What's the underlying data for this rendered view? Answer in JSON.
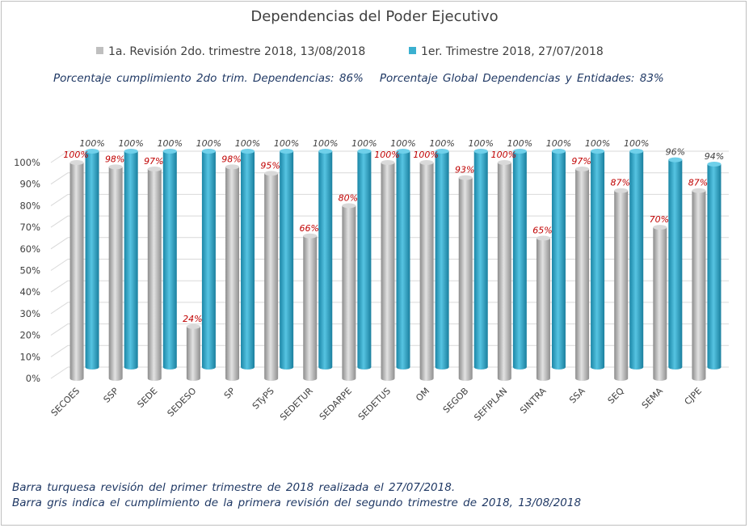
{
  "chart_data": {
    "type": "bar",
    "title": "Dependencias del Poder Ejecutivo",
    "subtitle_left": "Porcentaje cumplimiento 2do trim. Dependencias: 86%",
    "subtitle_right": "Porcentaje Global Dependencias y Entidades: 83%",
    "categories": [
      "SECOES",
      "SSP",
      "SEDE",
      "SEDESO",
      "SP",
      "STyPS",
      "SEDETUR",
      "SEDARPE",
      "SEDETUS",
      "OM",
      "SEGOB",
      "SEFIPLAN",
      "SINTRA",
      "SSA",
      "SEQ",
      "SEMA",
      "CJPE"
    ],
    "series": [
      {
        "name": "1a. Revisión 2do. trimestre 2018, 13/08/2018",
        "color": "#bfbfbf",
        "values": [
          100,
          98,
          97,
          24,
          98,
          95,
          66,
          80,
          100,
          100,
          93,
          100,
          65,
          97,
          87,
          70,
          87
        ],
        "labels": [
          "100%",
          "98%",
          "97%",
          "24%",
          "98%",
          "95%",
          "66%",
          "80%",
          "100%",
          "100%",
          "93%",
          "100%",
          "65%",
          "97%",
          "87%",
          "70%",
          "87%"
        ]
      },
      {
        "name": "1er. Trimestre 2018, 27/07/2018",
        "color": "#3bb0d0",
        "values": [
          100,
          100,
          100,
          100,
          100,
          100,
          100,
          100,
          100,
          100,
          100,
          100,
          100,
          100,
          100,
          96,
          94
        ],
        "labels": [
          "100%",
          "100%",
          "100%",
          "100%",
          "100%",
          "100%",
          "100%",
          "100%",
          "100%",
          "100%",
          "100%",
          "100%",
          "100%",
          "100%",
          "100%",
          "96%",
          "94%"
        ]
      }
    ],
    "ylim": [
      0,
      100
    ],
    "yticks": [
      "0%",
      "10%",
      "20%",
      "30%",
      "40%",
      "50%",
      "60%",
      "70%",
      "80%",
      "90%",
      "100%"
    ],
    "grid": true,
    "legend": "top"
  },
  "notes": [
    "Barra turquesa revisión del primer trimestre de 2018 realizada el 27/07/2018.",
    "Barra gris indica el cumplimiento de la primera revisión del segundo trimestre de 2018, 13/08/2018"
  ],
  "colors": {
    "text": "#404040",
    "navy": "#1f3864",
    "red_label": "#c00000",
    "grid": "#d9d9d9"
  }
}
